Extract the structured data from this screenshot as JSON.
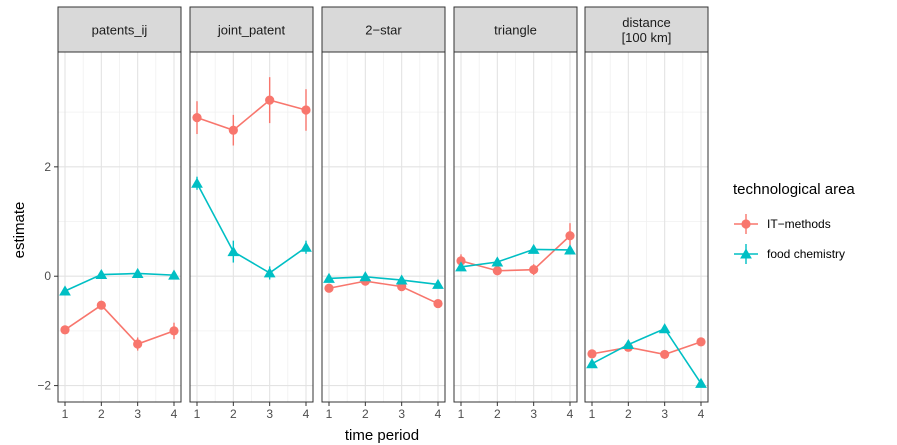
{
  "chart_data": {
    "type": "line",
    "xlabel": "time period",
    "ylabel": "estimate",
    "x": [
      1,
      2,
      3,
      4
    ],
    "x_ticks": [
      "1",
      "2",
      "3",
      "4"
    ],
    "ylim": [
      -2.3,
      4.1
    ],
    "y_ticks": [
      -2,
      0,
      2
    ],
    "y_tick_labels": [
      "−2",
      "0",
      "2"
    ],
    "grid": true,
    "legend": {
      "title": "technological area",
      "placement": "right",
      "entries": [
        {
          "label": "IT−methods",
          "color": "#F8766D",
          "shape": "circle"
        },
        {
          "label": "food chemistry",
          "color": "#00BFC4",
          "shape": "triangle"
        }
      ]
    },
    "panels": [
      {
        "label_lines": [
          "patents_ij"
        ],
        "series": [
          {
            "values": [
              -0.98,
              -0.53,
              -1.24,
              -1.0
            ],
            "err": [
              0.08,
              0.08,
              0.12,
              0.15
            ]
          },
          {
            "values": [
              -0.27,
              0.03,
              0.05,
              0.02
            ],
            "err": [
              0.05,
              0.05,
              0.05,
              0.05
            ]
          }
        ]
      },
      {
        "label_lines": [
          "joint_patent"
        ],
        "series": [
          {
            "values": [
              2.9,
              2.67,
              3.22,
              3.04
            ],
            "err": [
              0.3,
              0.28,
              0.42,
              0.38
            ]
          },
          {
            "values": [
              1.7,
              0.45,
              0.06,
              0.53
            ],
            "err": [
              0.12,
              0.2,
              0.12,
              0.12
            ]
          }
        ]
      },
      {
        "label_lines": [
          "2−star"
        ],
        "series": [
          {
            "values": [
              -0.22,
              -0.09,
              -0.19,
              -0.5
            ],
            "err": [
              0.06,
              0.05,
              0.05,
              0.05
            ]
          },
          {
            "values": [
              -0.04,
              -0.01,
              -0.07,
              -0.15
            ],
            "err": [
              0.06,
              0.05,
              0.05,
              0.05
            ]
          }
        ]
      },
      {
        "label_lines": [
          "triangle"
        ],
        "series": [
          {
            "values": [
              0.28,
              0.1,
              0.12,
              0.74
            ],
            "err": [
              0.12,
              0.08,
              0.1,
              0.23
            ]
          },
          {
            "values": [
              0.17,
              0.26,
              0.49,
              0.48
            ],
            "err": [
              0.07,
              0.07,
              0.06,
              0.06
            ]
          }
        ]
      },
      {
        "label_lines": [
          "distance",
          "[100 km]"
        ],
        "series": [
          {
            "values": [
              -1.42,
              -1.3,
              -1.43,
              -1.2
            ],
            "err": [
              0.04,
              0.04,
              0.04,
              0.04
            ]
          },
          {
            "values": [
              -1.6,
              -1.25,
              -0.96,
              -1.96
            ],
            "err": [
              0.04,
              0.04,
              0.04,
              0.04
            ]
          }
        ]
      }
    ]
  }
}
